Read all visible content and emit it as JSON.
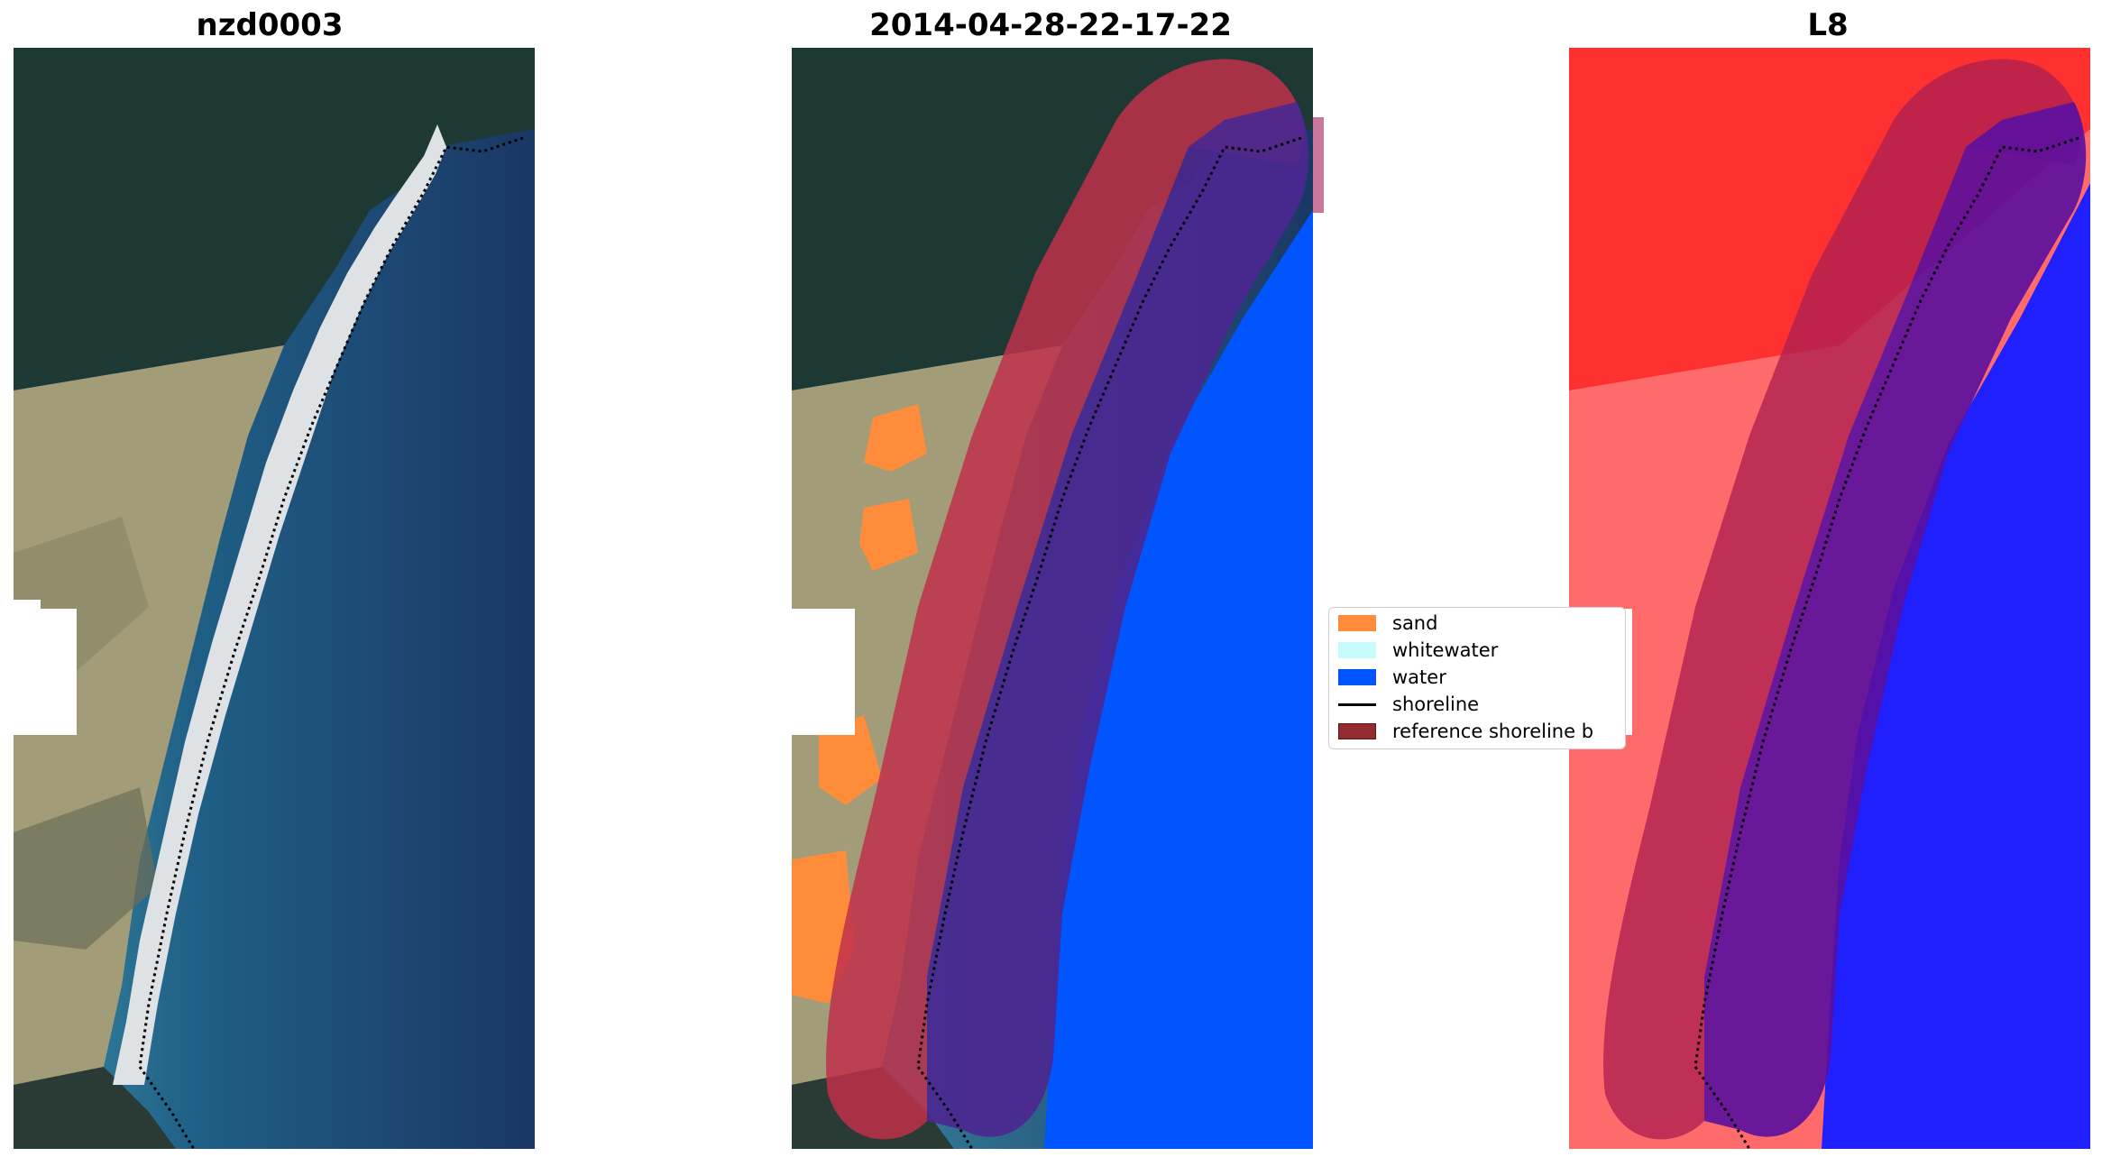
{
  "panels": [
    {
      "title": "nzd0003"
    },
    {
      "title": "2014-04-28-22-17-22"
    },
    {
      "title": "L8"
    }
  ],
  "legend": {
    "items": [
      {
        "label": "sand",
        "color": "#ff8c3a",
        "kind": "patch"
      },
      {
        "label": "whitewater",
        "color": "#c8fbfb",
        "kind": "patch"
      },
      {
        "label": "water",
        "color": "#0055ff",
        "kind": "patch"
      },
      {
        "label": "shoreline",
        "color": "#000000",
        "kind": "line"
      },
      {
        "label": "reference shoreline b",
        "color": "#932b2f",
        "kind": "patch"
      }
    ]
  },
  "colors": {
    "land_dark": "#1f3a33",
    "land_scrub": "#a8a27c",
    "beach": "#dfe3e6",
    "ocean_near": "#2e6f8c",
    "ocean_far": "#1b3963",
    "buffer_red": "#c0304a",
    "buffer_purple": "#4b2790",
    "classified_water": "#0055ff"
  }
}
